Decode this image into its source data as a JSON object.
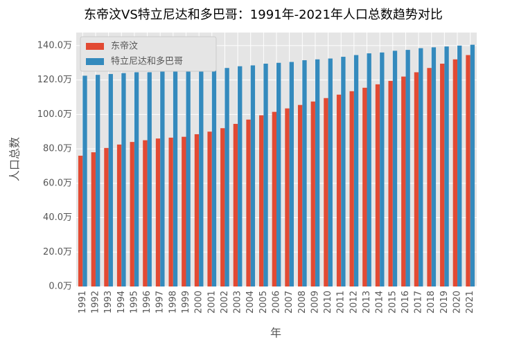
{
  "chart_data": {
    "type": "bar",
    "title": "东帝汶VS特立尼达和多巴哥：1991年-2021年人口总数趋势对比",
    "x_label": "年",
    "y_label": "人口总数",
    "categories": [
      "1991",
      "1992",
      "1993",
      "1994",
      "1995",
      "1996",
      "1997",
      "1998",
      "1999",
      "2000",
      "2001",
      "2002",
      "2003",
      "2004",
      "2005",
      "2006",
      "2007",
      "2008",
      "2009",
      "2010",
      "2011",
      "2012",
      "2013",
      "2014",
      "2015",
      "2016",
      "2017",
      "2018",
      "2019",
      "2020",
      "2021"
    ],
    "series": [
      {
        "name": "东帝汶",
        "color": "#E24A33",
        "values": [
          76,
          78,
          80.5,
          82.5,
          84,
          85,
          86,
          86.5,
          87,
          88.5,
          90,
          92,
          94.5,
          97,
          99.5,
          101.5,
          103.5,
          105.5,
          107.5,
          109.5,
          111.5,
          113.5,
          115.5,
          117.5,
          119.5,
          122,
          124.5,
          127,
          129.5,
          132,
          134.5
        ]
      },
      {
        "name": "特立尼达和多巴哥",
        "color": "#348ABD",
        "values": [
          122.5,
          123,
          123.5,
          124,
          124.5,
          124.5,
          125,
          125.5,
          126,
          126,
          126.5,
          127,
          128,
          128.5,
          129.5,
          130,
          130.5,
          131.5,
          132,
          132.5,
          133.5,
          134.5,
          135.5,
          136,
          137,
          137.5,
          138.5,
          139,
          139.5,
          140,
          140.5
        ]
      }
    ],
    "ylim": [
      0,
      147.6
    ],
    "yticks": [
      {
        "value": 0,
        "label": "0.0万"
      },
      {
        "value": 20,
        "label": "20.0万"
      },
      {
        "value": 40,
        "label": "40.0万"
      },
      {
        "value": 60,
        "label": "60.0万"
      },
      {
        "value": 80,
        "label": "80.0万"
      },
      {
        "value": 100,
        "label": "100.0万"
      },
      {
        "value": 120,
        "label": "120.0万"
      },
      {
        "value": 140,
        "label": "140.0万"
      }
    ],
    "grid": true,
    "legend": "upper-left"
  }
}
